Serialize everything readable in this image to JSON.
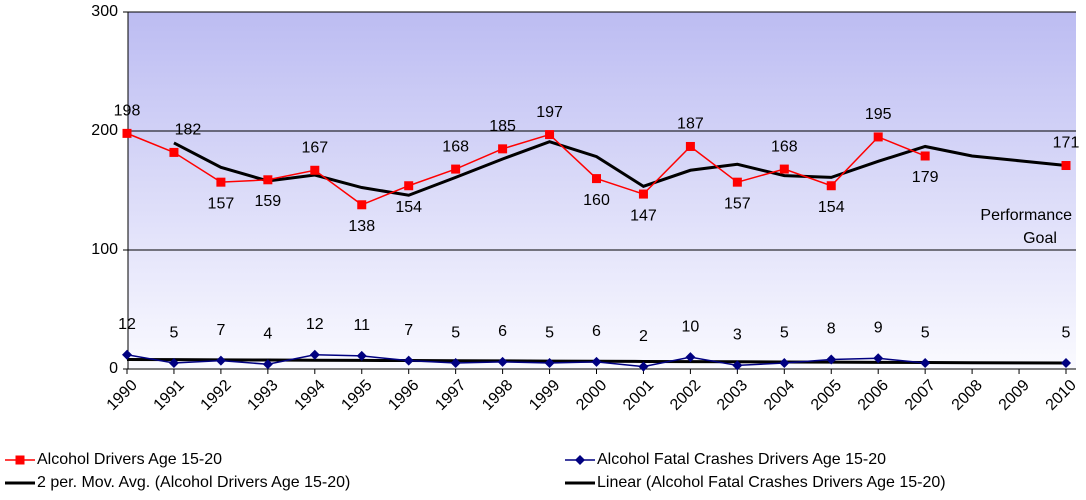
{
  "chart_data": {
    "type": "line",
    "categories": [
      "1990",
      "1991",
      "1992",
      "1993",
      "1994",
      "1995",
      "1996",
      "1997",
      "1998",
      "1999",
      "2000",
      "2001",
      "2002",
      "2003",
      "2004",
      "2005",
      "2006",
      "2007",
      "2008",
      "2009",
      "2010"
    ],
    "series": [
      {
        "name": "Alcohol Drivers Age   15-20",
        "color": "#ff0000",
        "marker": "square",
        "labels": true,
        "values": [
          198,
          182,
          157,
          159,
          167,
          138,
          154,
          168,
          185,
          197,
          160,
          147,
          187,
          157,
          168,
          154,
          195,
          179,
          null,
          null,
          171
        ]
      },
      {
        "name": "Alcohol Fatal Crashes Drivers Age 15-20",
        "color": "#000080",
        "marker": "diamond",
        "labels": true,
        "values": [
          12,
          5,
          7,
          4,
          12,
          11,
          7,
          5,
          6,
          5,
          6,
          2,
          10,
          3,
          5,
          8,
          9,
          5,
          null,
          null,
          5
        ]
      },
      {
        "name": "2 per. Mov. Avg. (Alcohol Drivers Age   15-20)",
        "color": "#000000",
        "marker": "none",
        "labels": false,
        "values": [
          null,
          190,
          169.5,
          158,
          163,
          152.5,
          146,
          161,
          176.5,
          191,
          178.5,
          153.5,
          167,
          172,
          162.5,
          161,
          174.5,
          187,
          179,
          175,
          171
        ]
      },
      {
        "name": "Linear (Alcohol Fatal Crashes Drivers Age 15-20)",
        "color": "#000000",
        "marker": "none",
        "labels": false,
        "values": [
          8,
          7.85,
          7.7,
          7.55,
          7.4,
          7.25,
          7.1,
          6.95,
          6.8,
          6.65,
          6.5,
          6.35,
          6.2,
          6.05,
          5.9,
          5.75,
          5.6,
          5.45,
          5.3,
          5.15,
          5
        ]
      }
    ],
    "annotation": [
      "Performance",
      "Goal"
    ],
    "ylim": [
      0,
      300
    ],
    "yticks": [
      0,
      100,
      200,
      300
    ],
    "grid": true
  }
}
